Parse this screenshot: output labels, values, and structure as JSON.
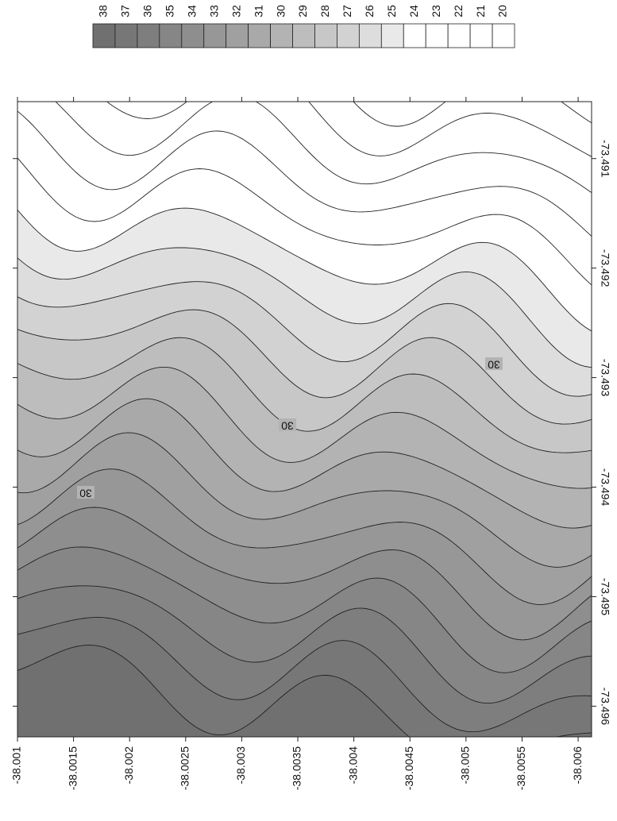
{
  "chart_data": {
    "type": "contour",
    "levels": [
      38,
      37,
      36,
      35,
      34,
      33,
      32,
      31,
      30,
      29,
      28,
      27,
      26,
      25,
      24,
      23,
      22,
      21,
      20
    ],
    "colors": [
      "#707070",
      "#777777",
      "#7e7e7e",
      "#868686",
      "#8e8e8e",
      "#979797",
      "#a0a0a0",
      "#a9a9a9",
      "#b3b3b3",
      "#bdbdbd",
      "#c7c7c7",
      "#d2d2d2",
      "#dddddd",
      "#e9e9e9",
      "#ffffff",
      "#ffffff",
      "#ffffff",
      "#ffffff",
      "#ffffff"
    ],
    "xlim": [
      -38.001,
      -38.00612
    ],
    "xticks": [
      -38.001,
      -38.0015,
      -38.002,
      -38.0025,
      -38.003,
      -38.0035,
      -38.004,
      -38.0045,
      -38.005,
      -38.0055,
      -38.006
    ],
    "ylim": [
      -73.49048,
      -73.49628
    ],
    "yticks": [
      -73.491,
      -73.492,
      -73.493,
      -73.494,
      -73.495,
      -73.496
    ],
    "contour_labels": [
      30,
      30,
      30
    ]
  }
}
